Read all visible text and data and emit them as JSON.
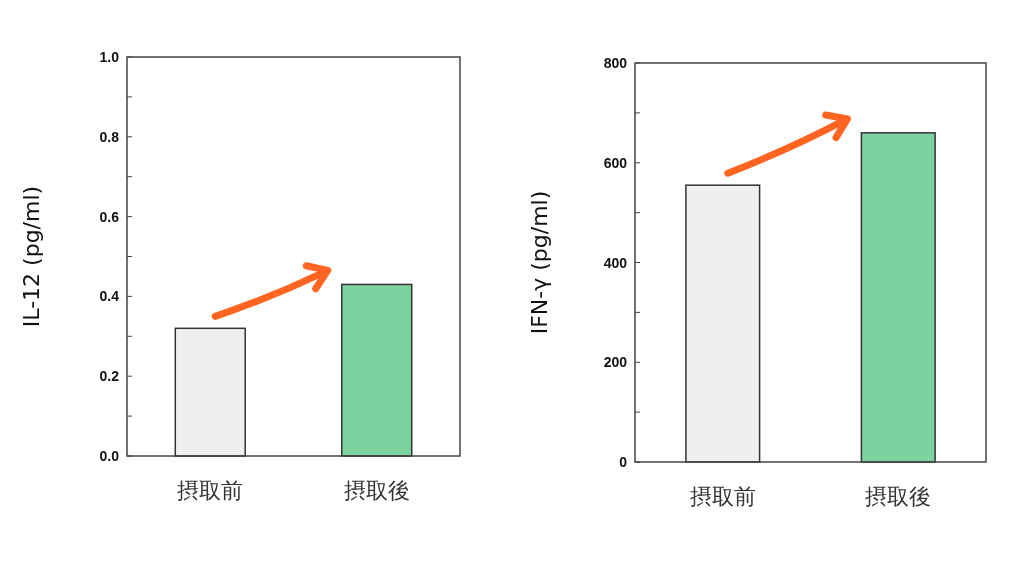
{
  "chart_data": [
    {
      "type": "bar",
      "ylabel": "IL-12 (pg/ml)",
      "categories": [
        "摂取前",
        "摂取後"
      ],
      "values": [
        0.32,
        0.43
      ],
      "colors": [
        "#efefef",
        "#7dd3a0"
      ],
      "ylim": [
        0,
        1
      ],
      "yticks": [
        {
          "value": 0,
          "label": "0.0"
        },
        {
          "value": 0.1,
          "label": null
        },
        {
          "value": 0.2,
          "label": "0.2"
        },
        {
          "value": 0.3,
          "label": null
        },
        {
          "value": 0.4,
          "label": "0.4"
        },
        {
          "value": 0.5,
          "label": null
        },
        {
          "value": 0.6,
          "label": "0.6"
        },
        {
          "value": 0.7,
          "label": null
        },
        {
          "value": 0.8,
          "label": "0.8"
        },
        {
          "value": 0.9,
          "label": null
        },
        {
          "value": 1,
          "label": "1.0"
        }
      ]
    },
    {
      "type": "bar",
      "ylabel": "IFN-γ (pg/ml)",
      "categories": [
        "摂取前",
        "摂取後"
      ],
      "values": [
        555,
        660
      ],
      "colors": [
        "#efefef",
        "#7dd3a0"
      ],
      "ylim": [
        0,
        800
      ],
      "yticks": [
        0,
        {
          "value": 100,
          "label": null
        },
        200,
        {
          "value": 300,
          "label": null
        },
        400,
        {
          "value": 500,
          "label": null
        },
        600,
        {
          "value": 700,
          "label": null
        },
        800
      ]
    }
  ]
}
